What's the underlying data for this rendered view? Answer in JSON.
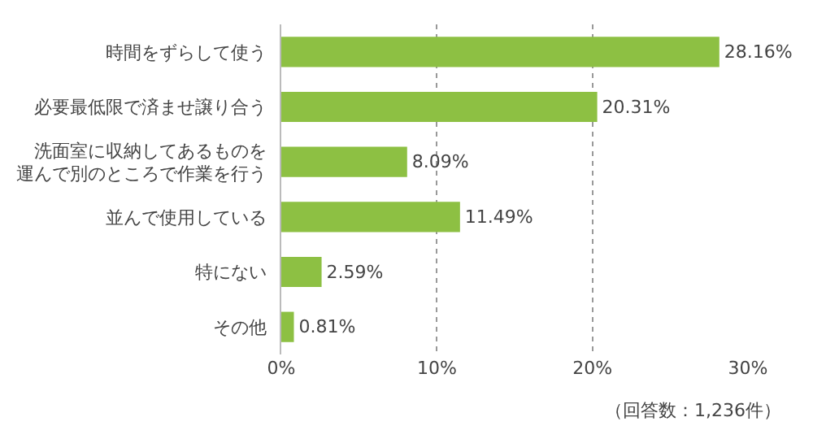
{
  "chart_data": {
    "type": "bar",
    "orientation": "horizontal",
    "categories": [
      "時間をずらして使う",
      "必要最低限で済ませ譲り合う",
      "洗面室に収納してあるものを運んで別のところで作業を行う",
      "並んで使用している",
      "特にない",
      "その他"
    ],
    "values": [
      28.16,
      20.31,
      8.09,
      11.49,
      2.59,
      0.81
    ],
    "value_labels": [
      "28.16%",
      "20.31%",
      "8.09%",
      "11.49%",
      "2.59%",
      "0.81%"
    ],
    "color": "#8dc043",
    "xlim": [
      0,
      30
    ],
    "xticks": [
      {
        "value": 0,
        "label": "0%"
      },
      {
        "value": 10,
        "label": "10%"
      },
      {
        "value": 20,
        "label": "20%"
      },
      {
        "value": 30,
        "label": "30%"
      }
    ],
    "grid": "x",
    "annotations": [
      "（回答数：1,236件）"
    ]
  }
}
